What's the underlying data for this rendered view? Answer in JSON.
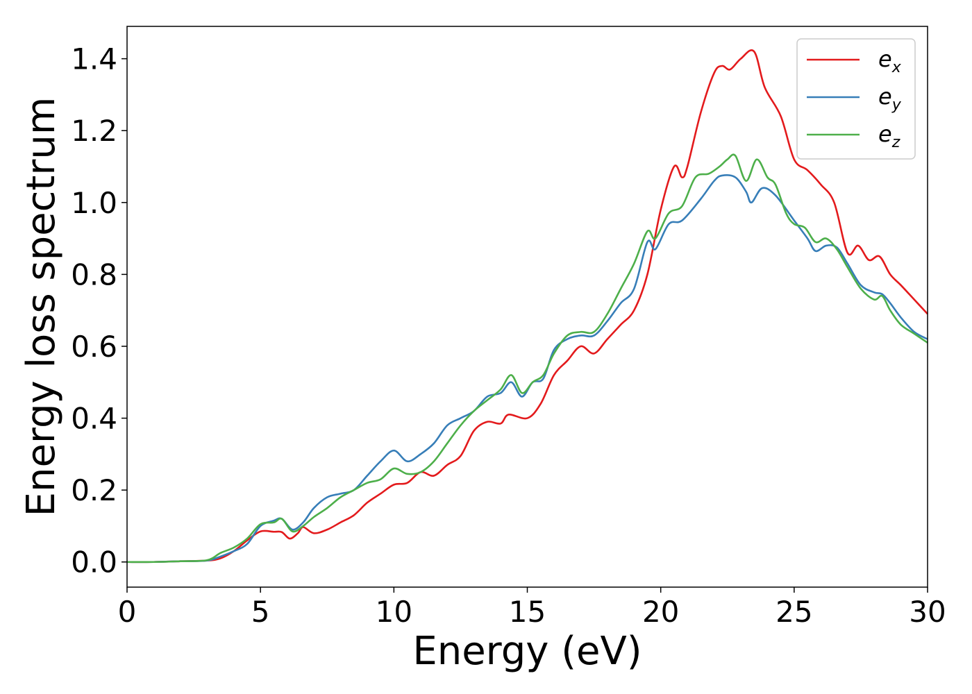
{
  "chart_data": {
    "type": "line",
    "xlabel": "Energy (eV)",
    "ylabel": "Energy loss spectrum",
    "xlim": [
      0,
      30
    ],
    "ylim": [
      -0.07,
      1.49
    ],
    "xticks": [
      "0",
      "5",
      "10",
      "15",
      "20",
      "25",
      "30"
    ],
    "yticks": [
      "0.0",
      "0.2",
      "0.4",
      "0.6",
      "0.8",
      "1.0",
      "1.2",
      "1.4"
    ],
    "grid": false,
    "legend_position": "top-right",
    "series": [
      {
        "name": "e_x",
        "legend_base": "e",
        "legend_sub": "x",
        "color": "#e31a1c",
        "points": [
          [
            0,
            0.0
          ],
          [
            1,
            0.0
          ],
          [
            2,
            0.002
          ],
          [
            3,
            0.004
          ],
          [
            3.5,
            0.01
          ],
          [
            4,
            0.03
          ],
          [
            4.5,
            0.06
          ],
          [
            5,
            0.085
          ],
          [
            5.5,
            0.084
          ],
          [
            5.8,
            0.083
          ],
          [
            6.1,
            0.065
          ],
          [
            6.4,
            0.08
          ],
          [
            6.6,
            0.097
          ],
          [
            7,
            0.08
          ],
          [
            7.5,
            0.09
          ],
          [
            8,
            0.11
          ],
          [
            8.5,
            0.13
          ],
          [
            9,
            0.165
          ],
          [
            9.5,
            0.19
          ],
          [
            10,
            0.215
          ],
          [
            10.5,
            0.22
          ],
          [
            11,
            0.25
          ],
          [
            11.5,
            0.24
          ],
          [
            12,
            0.27
          ],
          [
            12.5,
            0.295
          ],
          [
            13,
            0.365
          ],
          [
            13.5,
            0.39
          ],
          [
            14,
            0.385
          ],
          [
            14.3,
            0.41
          ],
          [
            15,
            0.4
          ],
          [
            15.5,
            0.44
          ],
          [
            16,
            0.52
          ],
          [
            16.5,
            0.56
          ],
          [
            17,
            0.6
          ],
          [
            17.5,
            0.58
          ],
          [
            18,
            0.62
          ],
          [
            18.5,
            0.66
          ],
          [
            19,
            0.7
          ],
          [
            19.5,
            0.8
          ],
          [
            20,
            0.98
          ],
          [
            20.5,
            1.1
          ],
          [
            20.8,
            1.07
          ],
          [
            21,
            1.1
          ],
          [
            21.5,
            1.25
          ],
          [
            22,
            1.36
          ],
          [
            22.3,
            1.38
          ],
          [
            22.6,
            1.37
          ],
          [
            23,
            1.4
          ],
          [
            23.5,
            1.42
          ],
          [
            23.9,
            1.32
          ],
          [
            24.5,
            1.24
          ],
          [
            25,
            1.12
          ],
          [
            25.5,
            1.09
          ],
          [
            26,
            1.05
          ],
          [
            26.5,
            1.0
          ],
          [
            27,
            0.86
          ],
          [
            27.4,
            0.88
          ],
          [
            27.8,
            0.84
          ],
          [
            28.2,
            0.85
          ],
          [
            28.6,
            0.8
          ],
          [
            29,
            0.77
          ],
          [
            29.5,
            0.73
          ],
          [
            30,
            0.69
          ]
        ]
      },
      {
        "name": "e_y",
        "legend_base": "e",
        "legend_sub": "y",
        "color": "#377eb8",
        "points": [
          [
            0,
            0.0
          ],
          [
            1,
            0.0
          ],
          [
            2,
            0.002
          ],
          [
            3,
            0.004
          ],
          [
            3.5,
            0.015
          ],
          [
            4,
            0.03
          ],
          [
            4.5,
            0.05
          ],
          [
            5,
            0.1
          ],
          [
            5.5,
            0.115
          ],
          [
            5.8,
            0.12
          ],
          [
            6.2,
            0.09
          ],
          [
            6.6,
            0.11
          ],
          [
            7,
            0.15
          ],
          [
            7.5,
            0.18
          ],
          [
            8,
            0.19
          ],
          [
            8.5,
            0.2
          ],
          [
            9,
            0.24
          ],
          [
            9.5,
            0.28
          ],
          [
            10,
            0.31
          ],
          [
            10.5,
            0.28
          ],
          [
            11,
            0.3
          ],
          [
            11.5,
            0.33
          ],
          [
            12,
            0.38
          ],
          [
            12.5,
            0.4
          ],
          [
            13,
            0.42
          ],
          [
            13.5,
            0.46
          ],
          [
            14,
            0.47
          ],
          [
            14.4,
            0.5
          ],
          [
            14.8,
            0.46
          ],
          [
            15.2,
            0.5
          ],
          [
            15.6,
            0.51
          ],
          [
            16,
            0.59
          ],
          [
            16.5,
            0.62
          ],
          [
            17,
            0.63
          ],
          [
            17.5,
            0.63
          ],
          [
            18,
            0.67
          ],
          [
            18.5,
            0.72
          ],
          [
            19,
            0.76
          ],
          [
            19.5,
            0.89
          ],
          [
            19.8,
            0.87
          ],
          [
            20.3,
            0.94
          ],
          [
            20.8,
            0.95
          ],
          [
            21.5,
            1.01
          ],
          [
            22,
            1.06
          ],
          [
            22.3,
            1.075
          ],
          [
            22.8,
            1.07
          ],
          [
            23.2,
            1.03
          ],
          [
            23.4,
            1.0
          ],
          [
            23.8,
            1.04
          ],
          [
            24.3,
            1.02
          ],
          [
            25,
            0.95
          ],
          [
            25.5,
            0.9
          ],
          [
            25.8,
            0.865
          ],
          [
            26.2,
            0.88
          ],
          [
            26.6,
            0.875
          ],
          [
            27,
            0.83
          ],
          [
            27.5,
            0.77
          ],
          [
            28,
            0.75
          ],
          [
            28.3,
            0.745
          ],
          [
            28.6,
            0.72
          ],
          [
            29,
            0.68
          ],
          [
            29.5,
            0.64
          ],
          [
            30,
            0.62
          ]
        ]
      },
      {
        "name": "e_z",
        "legend_base": "e",
        "legend_sub": "z",
        "color": "#4daf4a",
        "points": [
          [
            0,
            0.0
          ],
          [
            1,
            0.0
          ],
          [
            2,
            0.002
          ],
          [
            3,
            0.005
          ],
          [
            3.5,
            0.025
          ],
          [
            4,
            0.04
          ],
          [
            4.5,
            0.065
          ],
          [
            5,
            0.105
          ],
          [
            5.5,
            0.11
          ],
          [
            5.8,
            0.12
          ],
          [
            6.2,
            0.085
          ],
          [
            6.6,
            0.1
          ],
          [
            7,
            0.125
          ],
          [
            7.5,
            0.15
          ],
          [
            8,
            0.18
          ],
          [
            8.5,
            0.2
          ],
          [
            9,
            0.22
          ],
          [
            9.5,
            0.23
          ],
          [
            10,
            0.26
          ],
          [
            10.5,
            0.245
          ],
          [
            11,
            0.25
          ],
          [
            11.5,
            0.28
          ],
          [
            12,
            0.33
          ],
          [
            12.5,
            0.38
          ],
          [
            13,
            0.42
          ],
          [
            13.5,
            0.45
          ],
          [
            14,
            0.48
          ],
          [
            14.4,
            0.52
          ],
          [
            14.8,
            0.47
          ],
          [
            15.2,
            0.5
          ],
          [
            15.6,
            0.52
          ],
          [
            16,
            0.58
          ],
          [
            16.5,
            0.63
          ],
          [
            17,
            0.64
          ],
          [
            17.5,
            0.64
          ],
          [
            18,
            0.69
          ],
          [
            18.5,
            0.76
          ],
          [
            19,
            0.83
          ],
          [
            19.5,
            0.92
          ],
          [
            19.8,
            0.9
          ],
          [
            20.3,
            0.97
          ],
          [
            20.8,
            0.99
          ],
          [
            21.3,
            1.07
          ],
          [
            21.8,
            1.08
          ],
          [
            22.2,
            1.1
          ],
          [
            22.5,
            1.12
          ],
          [
            22.8,
            1.13
          ],
          [
            23.2,
            1.06
          ],
          [
            23.6,
            1.12
          ],
          [
            24,
            1.07
          ],
          [
            24.3,
            1.05
          ],
          [
            24.7,
            0.97
          ],
          [
            25,
            0.94
          ],
          [
            25.4,
            0.93
          ],
          [
            25.8,
            0.89
          ],
          [
            26.2,
            0.9
          ],
          [
            26.6,
            0.87
          ],
          [
            27,
            0.82
          ],
          [
            27.5,
            0.76
          ],
          [
            28,
            0.73
          ],
          [
            28.3,
            0.74
          ],
          [
            28.6,
            0.7
          ],
          [
            29,
            0.66
          ],
          [
            29.5,
            0.635
          ],
          [
            30,
            0.61
          ]
        ]
      }
    ]
  }
}
